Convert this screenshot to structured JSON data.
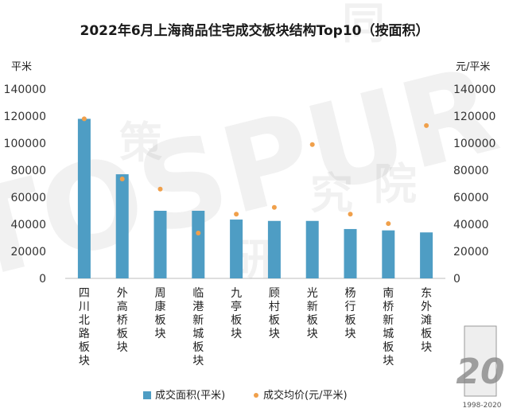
{
  "chart_data": {
    "type": "bar",
    "title": "2022年6月上海商品住宅成交板块结构Top10（按面积）",
    "left_unit": "平米",
    "right_unit": "元/平米",
    "categories": [
      "四川北路板块",
      "外高桥板块",
      "周康板块",
      "临港新城板块",
      "九亭板块",
      "顾村板块",
      "光新板块",
      "杨行板块",
      "南桥新城板块",
      "东外滩板块"
    ],
    "series": [
      {
        "name": "成交面积(平米)",
        "type": "bar",
        "axis": "left",
        "color": "#4e9dc4",
        "values": [
          118000,
          77000,
          50000,
          50000,
          43500,
          42500,
          42500,
          36500,
          35500,
          34000
        ]
      },
      {
        "name": "成交均价(元/平米)",
        "type": "scatter",
        "axis": "right",
        "color": "#f0a04b",
        "values": [
          118000,
          73500,
          66000,
          33500,
          47500,
          52500,
          99000,
          47500,
          40500,
          113000
        ]
      }
    ],
    "ylim_left": [
      0,
      140000
    ],
    "ylim_right": [
      0,
      140000
    ],
    "yticks": [
      "0",
      "20000",
      "40000",
      "60000",
      "80000",
      "100000",
      "120000",
      "140000"
    ],
    "legend_position": "bottom",
    "grid": false
  },
  "watermark": {
    "brand": "TOSPUR",
    "chars": [
      "同",
      "策",
      "研",
      "究",
      "院"
    ],
    "badge": "20",
    "years": "1998-2020"
  }
}
